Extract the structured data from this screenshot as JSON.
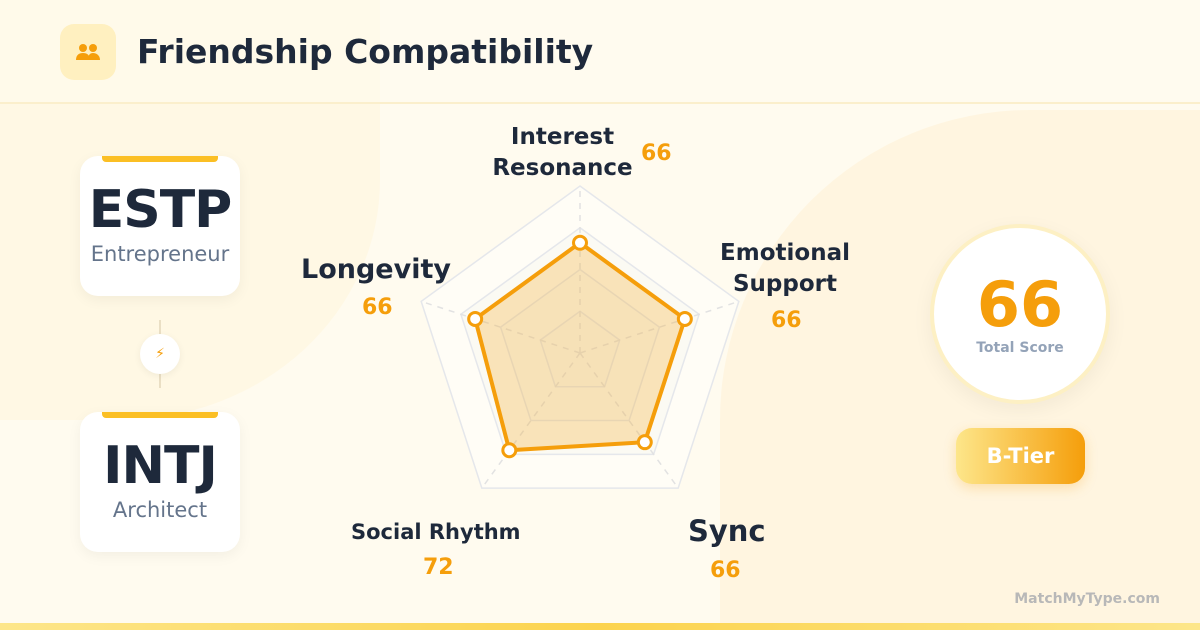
{
  "header": {
    "title": "Friendship Compatibility",
    "icon": "users-icon"
  },
  "types": [
    {
      "code": "ESTP",
      "name": "Entrepreneur"
    },
    {
      "code": "INTJ",
      "name": "Architect"
    }
  ],
  "link_icon": "bolt-icon",
  "chart_data": {
    "type": "radar",
    "max": 100,
    "axes": [
      "Interest Resonance",
      "Emotional Support",
      "Sync",
      "Social Rhythm",
      "Longevity"
    ],
    "values": [
      66,
      66,
      66,
      72,
      66
    ],
    "color": "#f59e0b"
  },
  "labels": {
    "interest": [
      "Interest",
      "Resonance"
    ],
    "emotional": [
      "Emotional",
      "Support"
    ],
    "sync": "Sync",
    "social": "Social Rhythm",
    "longevity": "Longevity"
  },
  "values": {
    "interest": "66",
    "emotional": "66",
    "sync": "66",
    "social": "72",
    "longevity": "66"
  },
  "score": {
    "value": "66",
    "label": "Total Score",
    "tier": "B-Tier"
  },
  "footer": "MatchMyType.com"
}
